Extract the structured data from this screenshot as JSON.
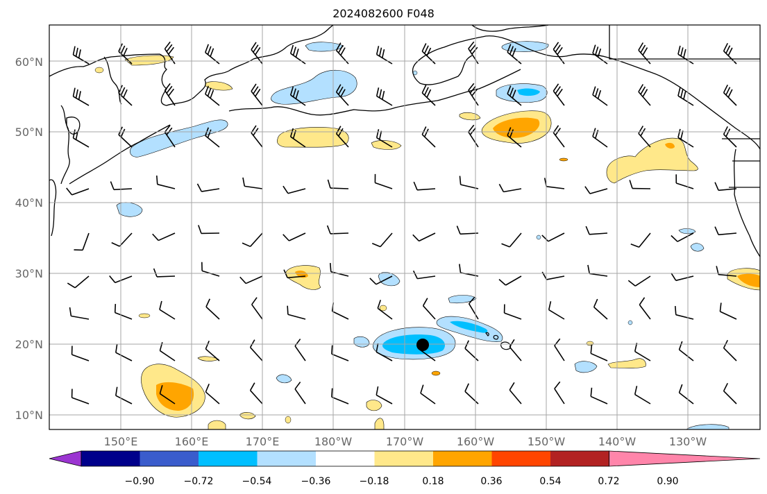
{
  "title": "2024082600 F048",
  "lat_labels": [
    "60°N",
    "50°N",
    "40°N",
    "30°N",
    "20°N",
    "10°N"
  ],
  "lon_labels": [
    "150°E",
    "160°E",
    "170°E",
    "180°W",
    "170°W",
    "160°W",
    "150°W",
    "140°W",
    "130°W"
  ],
  "colorbar": {
    "labels": [
      "−0.90",
      "−0.72",
      "−0.54",
      "−0.36",
      "−0.18",
      "0.18",
      "0.36",
      "0.54",
      "0.72",
      "0.90"
    ],
    "colors": [
      "#9b35d1",
      "#00008b",
      "#3a5ccc",
      "#00bfff",
      "#b3e0ff",
      "#ffffff",
      "#ffe88a",
      "#ffa500",
      "#ff4500",
      "#b22222",
      "#ff85aa"
    ]
  },
  "colors": {
    "grid": "#a6a6a6",
    "coast": "#000000",
    "frame": "#000000"
  },
  "marker": {
    "lat": 20,
    "lon": -167,
    "icon": "circle-marker-icon"
  }
}
